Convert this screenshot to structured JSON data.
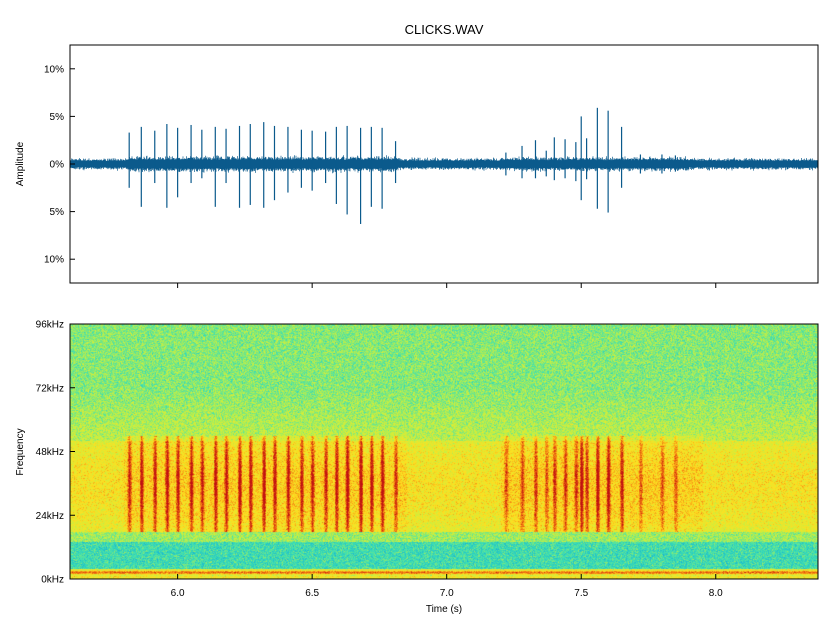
{
  "chart_data": [
    {
      "type": "line",
      "title": "CLICKS.WAV",
      "ylabel": "Amplitude",
      "xlim": [
        5.6,
        8.38
      ],
      "ylim": [
        -12.5,
        12.5
      ],
      "x_ticks": [
        6.0,
        6.5,
        7.0,
        7.5,
        8.0
      ],
      "y_ticks": [
        {
          "value": 10,
          "label": "10%"
        },
        {
          "value": 5,
          "label": "5%"
        },
        {
          "value": 0,
          "label": "0%"
        },
        {
          "value": -5,
          "label": "5%"
        },
        {
          "value": -10,
          "label": "10%"
        }
      ],
      "noise_floor_percent": 0.6,
      "line_color": "#0b5a8c",
      "clicks": [
        {
          "t": 5.82,
          "pos": 3.3,
          "neg": -2.5
        },
        {
          "t": 5.865,
          "pos": 3.9,
          "neg": -4.5
        },
        {
          "t": 5.915,
          "pos": 3.5,
          "neg": -2.0
        },
        {
          "t": 5.96,
          "pos": 4.2,
          "neg": -4.6
        },
        {
          "t": 6.0,
          "pos": 3.8,
          "neg": -3.5
        },
        {
          "t": 6.05,
          "pos": 4.1,
          "neg": -2.0
        },
        {
          "t": 6.09,
          "pos": 3.6,
          "neg": -1.5
        },
        {
          "t": 6.14,
          "pos": 3.9,
          "neg": -4.5
        },
        {
          "t": 6.18,
          "pos": 3.7,
          "neg": -2.0
        },
        {
          "t": 6.23,
          "pos": 4.0,
          "neg": -4.6
        },
        {
          "t": 6.27,
          "pos": 4.2,
          "neg": -4.3
        },
        {
          "t": 6.32,
          "pos": 4.4,
          "neg": -4.6
        },
        {
          "t": 6.36,
          "pos": 4.0,
          "neg": -3.8
        },
        {
          "t": 6.41,
          "pos": 3.9,
          "neg": -3.0
        },
        {
          "t": 6.46,
          "pos": 3.6,
          "neg": -2.5
        },
        {
          "t": 6.5,
          "pos": 3.5,
          "neg": -2.8
        },
        {
          "t": 6.55,
          "pos": 3.4,
          "neg": -2.0
        },
        {
          "t": 6.59,
          "pos": 3.9,
          "neg": -4.2
        },
        {
          "t": 6.63,
          "pos": 4.0,
          "neg": -5.3
        },
        {
          "t": 6.68,
          "pos": 3.8,
          "neg": -6.3
        },
        {
          "t": 6.72,
          "pos": 3.9,
          "neg": -4.5
        },
        {
          "t": 6.76,
          "pos": 3.8,
          "neg": -4.7
        },
        {
          "t": 6.81,
          "pos": 2.4,
          "neg": -2.0
        },
        {
          "t": 7.22,
          "pos": 1.2,
          "neg": -1.2
        },
        {
          "t": 7.28,
          "pos": 1.9,
          "neg": -1.5
        },
        {
          "t": 7.33,
          "pos": 2.5,
          "neg": -1.5
        },
        {
          "t": 7.37,
          "pos": 1.4,
          "neg": -1.3
        },
        {
          "t": 7.4,
          "pos": 2.8,
          "neg": -1.7
        },
        {
          "t": 7.44,
          "pos": 2.6,
          "neg": -1.5
        },
        {
          "t": 7.48,
          "pos": 2.3,
          "neg": -1.8
        },
        {
          "t": 7.5,
          "pos": 5.0,
          "neg": -3.8
        },
        {
          "t": 7.52,
          "pos": 2.7,
          "neg": -1.6
        },
        {
          "t": 7.56,
          "pos": 5.9,
          "neg": -4.7
        },
        {
          "t": 7.6,
          "pos": 5.6,
          "neg": -5.1
        },
        {
          "t": 7.65,
          "pos": 3.9,
          "neg": -2.5
        },
        {
          "t": 7.72,
          "pos": 1.0,
          "neg": -1.0
        },
        {
          "t": 7.8,
          "pos": 1.0,
          "neg": -1.0
        },
        {
          "t": 7.85,
          "pos": 0.9,
          "neg": -0.8
        }
      ]
    },
    {
      "type": "heatmap",
      "xlabel": "Time (s)",
      "ylabel": "Frequency",
      "xlim": [
        5.6,
        8.38
      ],
      "ylim": [
        0,
        96
      ],
      "x_ticks": [
        {
          "value": 6.0,
          "label": "6.0"
        },
        {
          "value": 6.5,
          "label": "6.5"
        },
        {
          "value": 7.0,
          "label": "7.0"
        },
        {
          "value": 7.5,
          "label": "7.5"
        },
        {
          "value": 8.0,
          "label": "8.0"
        }
      ],
      "y_ticks": [
        {
          "value": 96,
          "label": "96kHz"
        },
        {
          "value": 72,
          "label": "72kHz"
        },
        {
          "value": 48,
          "label": "48kHz"
        },
        {
          "value": 24,
          "label": "24kHz"
        },
        {
          "value": 0,
          "label": "0kHz"
        }
      ],
      "colormap": [
        "#0a3a8a",
        "#10b0d8",
        "#40e0b0",
        "#c8f040",
        "#ffe020",
        "#f07010",
        "#c01010"
      ],
      "band_kHz": [
        18,
        52
      ],
      "click_freq_range_kHz": [
        18,
        54
      ],
      "low_freq_band_kHz": [
        0,
        4
      ]
    }
  ]
}
